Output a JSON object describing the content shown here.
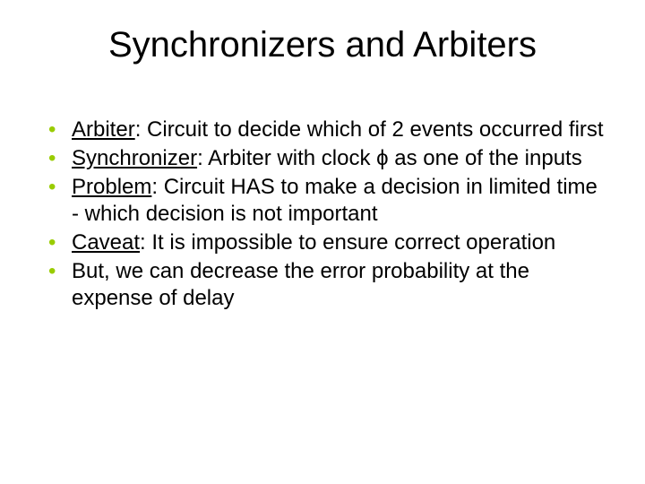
{
  "title": "Synchronizers and Arbiters",
  "title_color": "#000000",
  "title_fontsize": 40,
  "bullet_color": "#99cc00",
  "body_fontsize": 24,
  "line_height": 30,
  "background_color": "#ffffff",
  "bullets": [
    {
      "term": "Arbiter",
      "rest": ": Circuit to decide which of 2 events occurred first"
    },
    {
      "term": "Synchronizer",
      "rest": ": Arbiter with clock ϕ as one of the inputs"
    },
    {
      "term": "Problem",
      "rest": ": Circuit HAS to make a decision in limited time - which decision is not important"
    },
    {
      "term": "Caveat",
      "rest": ": It is impossible to ensure correct operation"
    },
    {
      "term": "",
      "rest": "But, we can decrease the error probability at the expense of delay"
    }
  ]
}
